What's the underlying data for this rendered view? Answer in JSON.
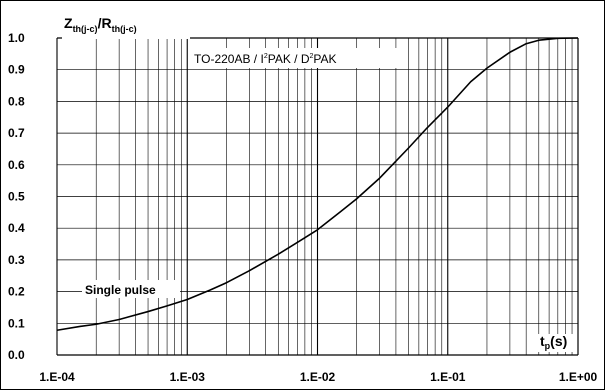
{
  "chart_data": {
    "type": "line",
    "title_main_1": "Z",
    "title_sub_1": "th(j-c)",
    "title_slash": "/",
    "title_main_2": "R",
    "title_sub_2": "th(j-c)",
    "package_label": {
      "part1": "TO-220AB / I",
      "sup1": "2",
      "part2": "PAK / D",
      "sup2": "2",
      "part3": "PAK"
    },
    "series_annotation": "Single pulse",
    "xlabel": {
      "main": "t",
      "sub": "p",
      "rest": "(s)"
    },
    "x_scale": "log",
    "xlim": [
      0.0001,
      1
    ],
    "ylim": [
      0,
      1.0
    ],
    "x_tick_labels": [
      "1.E-04",
      "1.E-03",
      "1.E-02",
      "1.E-01",
      "1.E+00"
    ],
    "y_tick_labels": [
      "0.0",
      "0.1",
      "0.2",
      "0.3",
      "0.4",
      "0.5",
      "0.6",
      "0.7",
      "0.8",
      "0.9",
      "1.0"
    ],
    "grid": true,
    "line_color": "#000000",
    "grid_color": "#000000",
    "series": [
      {
        "x": [
          0.0001,
          0.00015,
          0.0002,
          0.0003,
          0.0005,
          0.0007,
          0.001,
          0.0015,
          0.002,
          0.003,
          0.005,
          0.007,
          0.01,
          0.015,
          0.02,
          0.03,
          0.05,
          0.07,
          0.1,
          0.15,
          0.2,
          0.3,
          0.4,
          0.5,
          0.7,
          1.0
        ],
        "y": [
          0.078,
          0.09,
          0.097,
          0.112,
          0.137,
          0.155,
          0.175,
          0.205,
          0.228,
          0.266,
          0.318,
          0.355,
          0.395,
          0.452,
          0.493,
          0.558,
          0.653,
          0.718,
          0.782,
          0.862,
          0.905,
          0.955,
          0.982,
          0.993,
          0.999,
          1.0
        ]
      }
    ]
  }
}
